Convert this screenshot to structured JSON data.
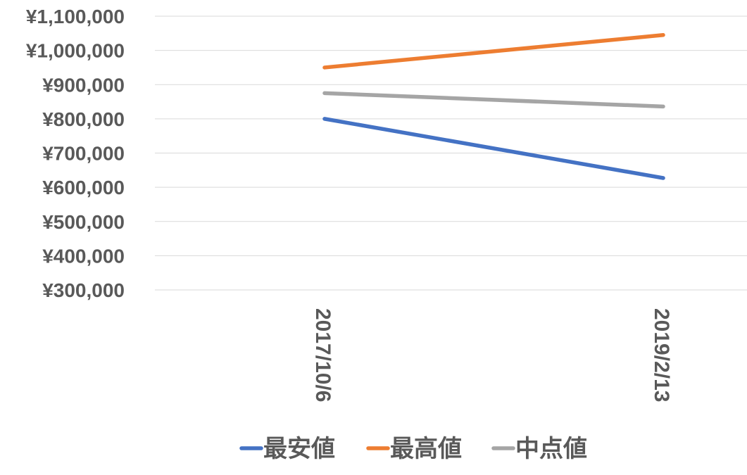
{
  "chart_data": {
    "type": "line",
    "title": "",
    "xlabel": "",
    "ylabel": "",
    "categories": [
      "2017/10/6",
      "2019/2/13"
    ],
    "y_ticks": [
      "¥300,000",
      "¥400,000",
      "¥500,000",
      "¥600,000",
      "¥700,000",
      "¥800,000",
      "¥900,000",
      "¥1,000,000",
      "¥1,100,000"
    ],
    "ylim": [
      300000,
      1100000
    ],
    "grid": true,
    "legend_position": "bottom",
    "series": [
      {
        "name": "最安値",
        "color": "#4472C4",
        "values": [
          800000,
          627000
        ]
      },
      {
        "name": "最高値",
        "color": "#ED7D31",
        "values": [
          950000,
          1045000
        ]
      },
      {
        "name": "中点値",
        "color": "#A5A5A5",
        "values": [
          875000,
          836000
        ]
      }
    ]
  }
}
